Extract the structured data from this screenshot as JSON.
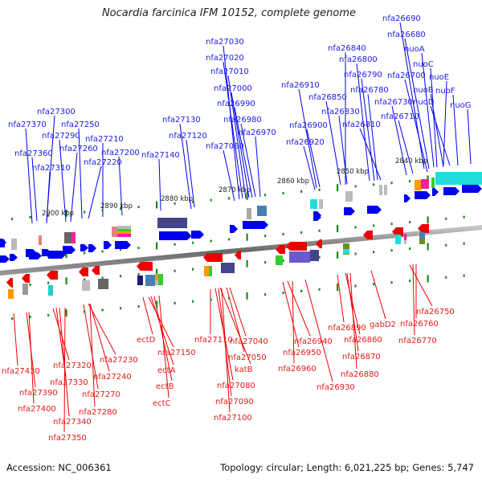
{
  "title": "Nocardia farcinica IFM 10152, complete genome",
  "footer": {
    "accession": "Accession: NC_006361",
    "summary": "Topology: circular; Length: 6,021,225 bp; Genes: 5,747"
  },
  "colors": {
    "forward": "#0000ee",
    "reverse": "#ee0000",
    "forward_label": "#1a1ae6",
    "reverse_label": "#e61a1a",
    "tick": "#1a8a1a",
    "backbone": "#777777"
  },
  "scale": {
    "unit": "kbp",
    "ticks": [
      {
        "label": "2900 kbp",
        "value": 2900
      },
      {
        "label": "2890 kbp",
        "value": 2890
      },
      {
        "label": "2880 kbp",
        "value": 2880
      },
      {
        "label": "2870 kbp",
        "value": 2870
      },
      {
        "label": "2860 kbp",
        "value": 2860
      },
      {
        "label": "2850 kbp",
        "value": 2850
      },
      {
        "label": "2840 kbp",
        "value": 2840
      }
    ]
  },
  "forward_genes": [
    {
      "name": "nfa27370"
    },
    {
      "name": "nfa27360"
    },
    {
      "name": "nfa27300"
    },
    {
      "name": "nfa27310"
    },
    {
      "name": "nfa27290"
    },
    {
      "name": "nfa27260"
    },
    {
      "name": "nfa27250"
    },
    {
      "name": "nfa27220"
    },
    {
      "name": "nfa27210"
    },
    {
      "name": "nfa27200"
    },
    {
      "name": "nfa27140"
    },
    {
      "name": "nfa27130"
    },
    {
      "name": "nfa27120"
    },
    {
      "name": "nfa27060"
    },
    {
      "name": "nfa27030"
    },
    {
      "name": "nfa27020"
    },
    {
      "name": "nfa27010"
    },
    {
      "name": "nfa27000"
    },
    {
      "name": "nfa26990"
    },
    {
      "name": "nfa26980"
    },
    {
      "name": "nfa26970"
    },
    {
      "name": "nfa26920"
    },
    {
      "name": "nfa26910"
    },
    {
      "name": "nfa26900"
    },
    {
      "name": "nfa26840"
    },
    {
      "name": "nfa26850"
    },
    {
      "name": "nfa26830"
    },
    {
      "name": "nfa26800"
    },
    {
      "name": "nfa26790"
    },
    {
      "name": "nfa26780"
    },
    {
      "name": "nfa26810"
    },
    {
      "name": "nfa26730"
    },
    {
      "name": "nfa26710"
    },
    {
      "name": "nfa26700"
    },
    {
      "name": "nfa26690"
    },
    {
      "name": "nfa26680"
    },
    {
      "name": "nuoA"
    },
    {
      "name": "nuoB"
    },
    {
      "name": "nuoC"
    },
    {
      "name": "nuoD"
    },
    {
      "name": "nuoE"
    },
    {
      "name": "nuoF"
    },
    {
      "name": "nuoG"
    }
  ],
  "reverse_genes": [
    {
      "name": "nfa27430"
    },
    {
      "name": "nfa27390"
    },
    {
      "name": "nfa27400"
    },
    {
      "name": "nfa27320"
    },
    {
      "name": "nfa27330"
    },
    {
      "name": "nfa27340"
    },
    {
      "name": "nfa27350"
    },
    {
      "name": "nfa27230"
    },
    {
      "name": "nfa27240"
    },
    {
      "name": "nfa27270"
    },
    {
      "name": "nfa27280"
    },
    {
      "name": "ectD"
    },
    {
      "name": "nfa27150"
    },
    {
      "name": "ectA"
    },
    {
      "name": "ectB"
    },
    {
      "name": "ectC"
    },
    {
      "name": "nfa27110"
    },
    {
      "name": "nfa27040"
    },
    {
      "name": "nfa27050"
    },
    {
      "name": "katB"
    },
    {
      "name": "nfa27080"
    },
    {
      "name": "nfa27090"
    },
    {
      "name": "nfa27100"
    },
    {
      "name": "nfa26940"
    },
    {
      "name": "nfa26950"
    },
    {
      "name": "nfa26960"
    },
    {
      "name": "nfa26930"
    },
    {
      "name": "nfa26890"
    },
    {
      "name": "nfa26860"
    },
    {
      "name": "nfa26870"
    },
    {
      "name": "nfa26880"
    },
    {
      "name": "gabD2"
    },
    {
      "name": "nfa26750"
    },
    {
      "name": "nfa26760"
    },
    {
      "name": "nfa26770"
    }
  ]
}
